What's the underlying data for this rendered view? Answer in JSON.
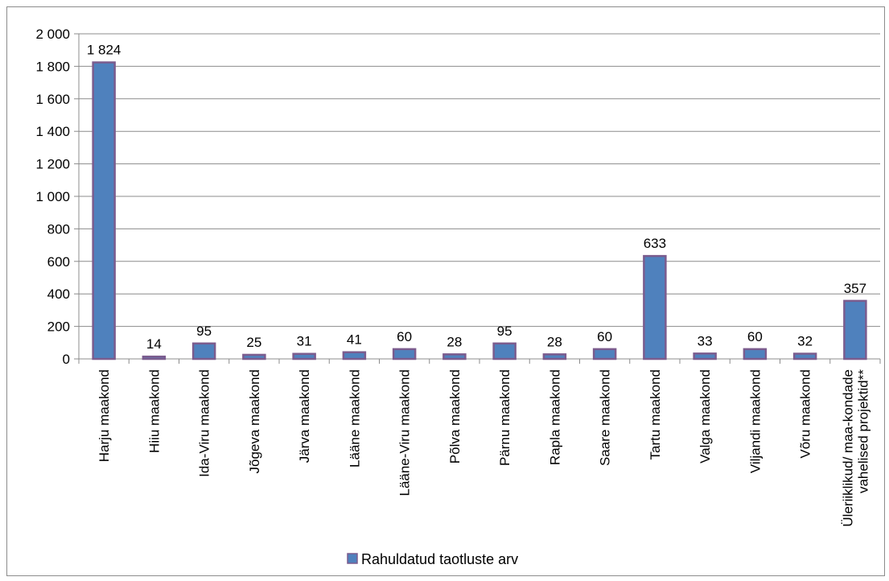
{
  "chart_data": {
    "type": "bar",
    "categories": [
      "Harju maakond",
      "Hiiu maakond",
      "Ida-Viru maakond",
      "Jõgeva maakond",
      "Järva maakond",
      "Lääne maakond",
      "Lääne-Viru maakond",
      "Põlva maakond",
      "Pärnu maakond",
      "Rapla maakond",
      "Saare maakond",
      "Tartu maakond",
      "Valga maakond",
      "Viljandi maakond",
      "Võru maakond",
      [
        "Üleriiklikud/ maa-kondade",
        "vahelised projektid**"
      ]
    ],
    "series": [
      {
        "name": "Rahuldatud taotluste arv",
        "color": "#4f81bd",
        "border_color": "#7b5c8e",
        "values": [
          1824,
          14,
          95,
          25,
          31,
          41,
          60,
          28,
          95,
          28,
          60,
          633,
          33,
          60,
          32,
          357
        ],
        "labels": [
          "1 824",
          "14",
          "95",
          "25",
          "31",
          "41",
          "60",
          "28",
          "95",
          "28",
          "60",
          "633",
          "33",
          "60",
          "32",
          "357"
        ]
      }
    ],
    "ylim": [
      0,
      2000
    ],
    "yticks": [
      0,
      200,
      400,
      600,
      800,
      1000,
      1200,
      1400,
      1600,
      1800,
      2000
    ],
    "ytick_labels": [
      "0",
      "200",
      "400",
      "600",
      "800",
      "1 000",
      "1 200",
      "1 400",
      "1 600",
      "1 800",
      "2 000"
    ],
    "grid": true,
    "legend_position": "bottom"
  }
}
